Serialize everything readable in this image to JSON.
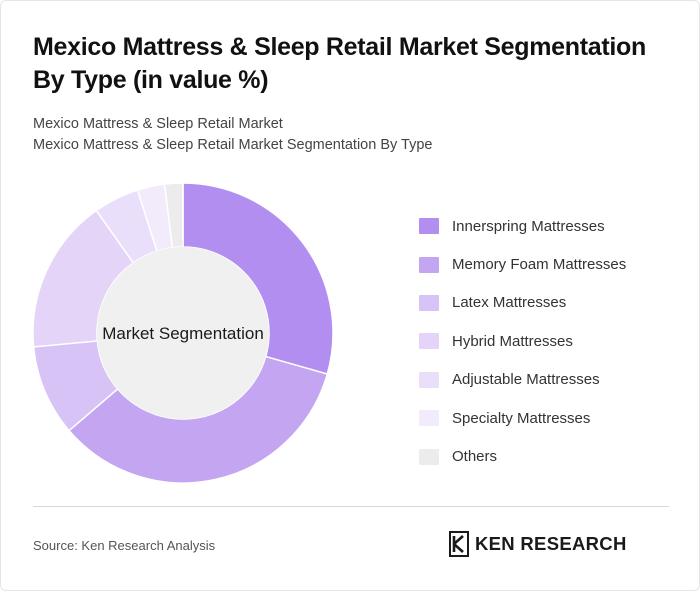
{
  "header": {
    "title": "Mexico Mattress & Sleep Retail Market Segmentation By Type (in value %)",
    "subtitle_line1": "Mexico Mattress & Sleep Retail Market",
    "subtitle_line2": "Mexico Mattress & Sleep Retail Market Segmentation By Type"
  },
  "chart_data": {
    "type": "pie",
    "donut": true,
    "center_label": "Market Segmentation",
    "categories": [
      "Innerspring Mattresses",
      "Memory Foam Mattresses",
      "Latex Mattresses",
      "Hybrid Mattresses",
      "Adjustable Mattresses",
      "Specialty Mattresses",
      "Others"
    ],
    "values": [
      30,
      35,
      10,
      17,
      5,
      3,
      2
    ],
    "colors": [
      "#b18ef0",
      "#c3a5f2",
      "#d8c3f6",
      "#e3d4f8",
      "#eadffa",
      "#f1ebfb",
      "#ececec"
    ],
    "legend_position": "right"
  },
  "footer": {
    "source": "Source: Ken Research Analysis",
    "logo_text": "KEN RESEARCH"
  }
}
